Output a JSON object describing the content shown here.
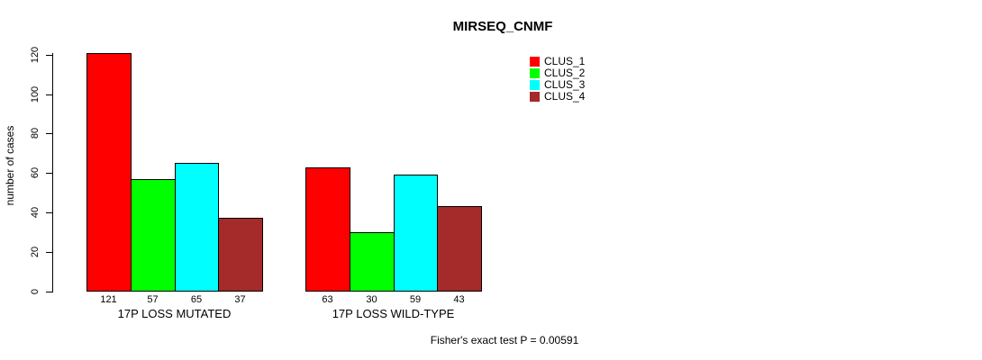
{
  "chart_data": {
    "type": "bar",
    "title": "MIRSEQ_CNMF",
    "ylabel": "number of cases",
    "xlabel": "",
    "ylim": [
      0,
      120
    ],
    "yticks": [
      0,
      20,
      40,
      60,
      80,
      100,
      120
    ],
    "grid": false,
    "legend_position": "top-right",
    "categories": [
      "17P LOSS MUTATED",
      "17P LOSS WILD-TYPE"
    ],
    "series": [
      {
        "name": "CLUS_1",
        "color": "#FF0000",
        "values": [
          121,
          63
        ]
      },
      {
        "name": "CLUS_2",
        "color": "#00FF00",
        "values": [
          57,
          30
        ]
      },
      {
        "name": "CLUS_3",
        "color": "#00FFFF",
        "values": [
          65,
          59
        ]
      },
      {
        "name": "CLUS_4",
        "color": "#A52A2A",
        "values": [
          37,
          43
        ]
      }
    ],
    "bar_value_labels": [
      [
        121,
        57,
        65,
        37
      ],
      [
        63,
        30,
        59,
        43
      ]
    ],
    "annotation": "Fisher's exact test P = 0.00591"
  }
}
